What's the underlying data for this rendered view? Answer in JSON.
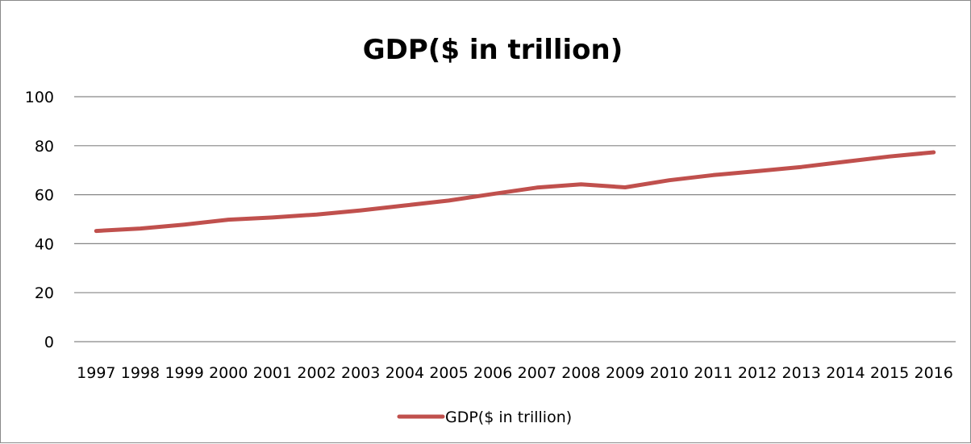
{
  "chart_data": {
    "type": "line",
    "title": "GDP($ in trillion)",
    "xlabel": "",
    "ylabel": "",
    "categories": [
      "1997",
      "1998",
      "1999",
      "2000",
      "2001",
      "2002",
      "2003",
      "2004",
      "2005",
      "2006",
      "2007",
      "2008",
      "2009",
      "2010",
      "2011",
      "2012",
      "2013",
      "2014",
      "2015",
      "2016"
    ],
    "series": [
      {
        "name": "GDP($ in trillion)",
        "color": "#c0504d",
        "values": [
          45.2,
          46.2,
          47.8,
          49.8,
          50.7,
          51.9,
          53.6,
          55.6,
          57.6,
          60.3,
          62.9,
          64.2,
          63.0,
          65.9,
          68.0,
          69.6,
          71.3,
          73.5,
          75.6,
          77.3
        ]
      }
    ],
    "ylim": [
      0,
      100
    ],
    "yticks": [
      0,
      20,
      40,
      60,
      80,
      100
    ],
    "grid": true,
    "legend": "bottom"
  }
}
